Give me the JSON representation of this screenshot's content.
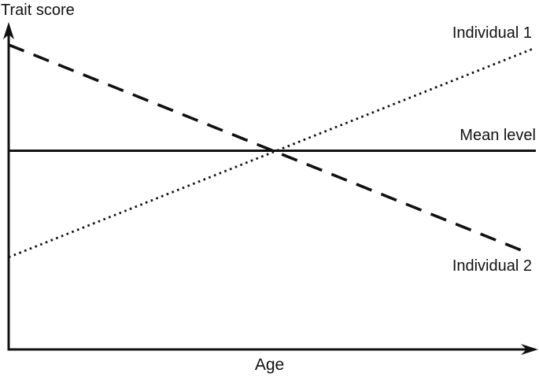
{
  "chart_data": {
    "type": "line",
    "title": "",
    "xlabel": "Age",
    "ylabel": "Trait score",
    "xlim": [
      0,
      1
    ],
    "ylim": [
      0,
      1
    ],
    "grid": false,
    "axes_have_tick_labels": false,
    "legend_position": "inline-annotations",
    "series": [
      {
        "name": "Individual 1",
        "style": "dotted",
        "points": [
          [
            0.0,
            0.283
          ],
          [
            0.992,
            0.923
          ]
        ]
      },
      {
        "name": "Individual 2",
        "style": "dashed",
        "points": [
          [
            0.0,
            0.935
          ],
          [
            0.984,
            0.295
          ]
        ]
      },
      {
        "name": "Mean level",
        "style": "solid",
        "points": [
          [
            0.0,
            0.61
          ],
          [
            0.997,
            0.61
          ]
        ]
      }
    ],
    "colors": {
      "line": "#111111",
      "background": "#ffffff",
      "text": "#111111"
    }
  }
}
